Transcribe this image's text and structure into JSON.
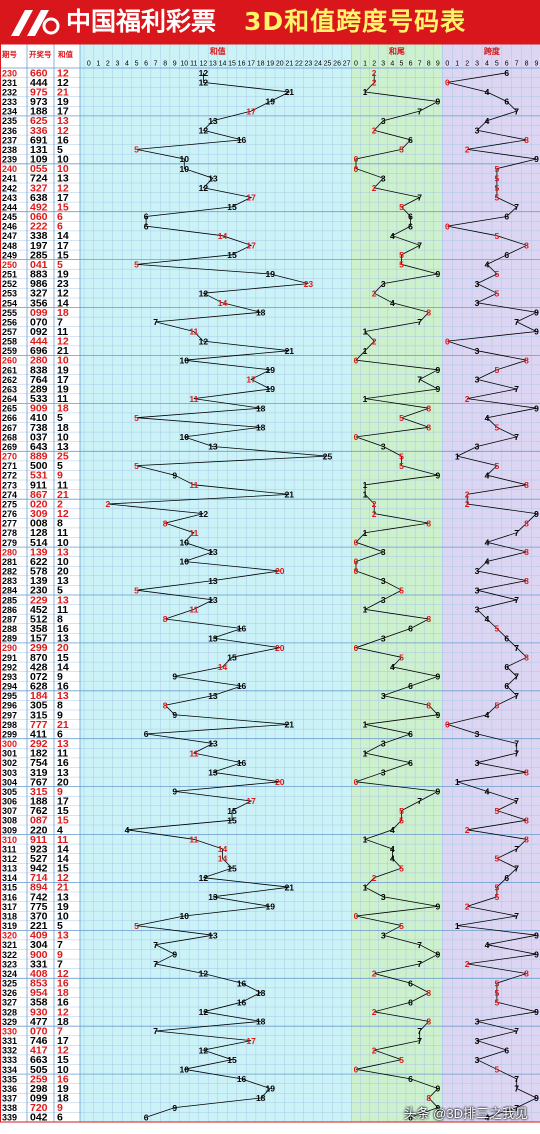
{
  "header": {
    "brand": "中国福利彩票",
    "title": "3D和值跨度号码表"
  },
  "watermark": "头条 @3D排三之我见",
  "colors": {
    "header_red": "#d8161b",
    "title_yellow": "#fff36a",
    "sum_zone": "#cbf3f7",
    "tail_zone": "#cdf0cd",
    "span_zone": "#dcd6f2",
    "red_digit": "#e01818",
    "blue_digit": "#1a3fd8",
    "line": "#000000"
  },
  "chart_data": {
    "type": "line",
    "columns": {
      "issue": "期号",
      "number": "开奖号",
      "sum": "和值"
    },
    "sections": {
      "sum": "和值",
      "tail": "和尾",
      "span": "跨度"
    },
    "sum_ticks": [
      "0",
      "1",
      "2",
      "3",
      "4",
      "5",
      "6",
      "7",
      "8",
      "9",
      "10",
      "11",
      "12",
      "13",
      "14",
      "15",
      "16",
      "17",
      "18",
      "19",
      "20",
      "21",
      "22",
      "23",
      "24",
      "25",
      "26",
      "27"
    ],
    "tail_ticks": [
      "0",
      "1",
      "2",
      "3",
      "4",
      "5",
      "6",
      "7",
      "8",
      "9"
    ],
    "span_ticks": [
      "0",
      "1",
      "2",
      "3",
      "4",
      "5",
      "6",
      "7",
      "8",
      "9"
    ],
    "issues": [
      "230",
      "231",
      "232",
      "233",
      "234",
      "235",
      "236",
      "237",
      "238",
      "239",
      "240",
      "241",
      "242",
      "243",
      "244",
      "245",
      "246",
      "247",
      "248",
      "249",
      "250",
      "251",
      "252",
      "253",
      "254",
      "255",
      "256",
      "257",
      "258",
      "259",
      "260",
      "261",
      "262",
      "263",
      "264",
      "265",
      "266",
      "267",
      "268",
      "269",
      "270",
      "271",
      "272",
      "273",
      "274",
      "275",
      "276",
      "277",
      "278",
      "279",
      "280",
      "281",
      "282",
      "283",
      "284",
      "285",
      "286",
      "287",
      "288",
      "289",
      "290",
      "291",
      "292",
      "293",
      "294",
      "295",
      "296",
      "297",
      "298",
      "299",
      "300",
      "301",
      "302",
      "303",
      "304",
      "305",
      "306",
      "307",
      "308",
      "309",
      "310",
      "311",
      "312",
      "313",
      "314",
      "315",
      "316",
      "317",
      "318",
      "319",
      "320",
      "321",
      "322",
      "323",
      "324",
      "325",
      "326",
      "327",
      "328",
      "329",
      "330",
      "331",
      "332",
      "333",
      "334",
      "335",
      "336",
      "337",
      "338",
      "339"
    ],
    "numbers": [
      "660",
      "444",
      "975",
      "973",
      "188",
      "625",
      "336",
      "691",
      "131",
      "109",
      "055",
      "724",
      "327",
      "638",
      "492",
      "060",
      "222",
      "338",
      "197",
      "285",
      "041",
      "883",
      "986",
      "327",
      "356",
      "099",
      "070",
      "092",
      "444",
      "696",
      "280",
      "838",
      "764",
      "289",
      "533",
      "909",
      "410",
      "738",
      "037",
      "643",
      "889",
      "500",
      "531",
      "911",
      "867",
      "020",
      "309",
      "008",
      "128",
      "514",
      "139",
      "622",
      "578",
      "139",
      "230",
      "229",
      "452",
      "512",
      "358",
      "157",
      "299",
      "870",
      "428",
      "072",
      "628",
      "184",
      "305",
      "315",
      "777",
      "411",
      "292",
      "182",
      "754",
      "319",
      "767",
      "315",
      "188",
      "762",
      "087",
      "220",
      "911",
      "923",
      "527",
      "942",
      "714",
      "894",
      "742",
      "775",
      "370",
      "221",
      "409",
      "304",
      "900",
      "331",
      "408",
      "853",
      "954",
      "358",
      "930",
      "477",
      "070",
      "746",
      "417",
      "663",
      "505",
      "259",
      "298",
      "099",
      "720",
      "042"
    ],
    "sums": [
      12,
      12,
      21,
      19,
      17,
      13,
      12,
      16,
      5,
      10,
      10,
      13,
      12,
      17,
      15,
      6,
      6,
      14,
      17,
      15,
      5,
      19,
      23,
      12,
      14,
      18,
      7,
      11,
      12,
      21,
      10,
      19,
      17,
      19,
      11,
      18,
      5,
      18,
      10,
      13,
      25,
      5,
      9,
      11,
      21,
      2,
      12,
      8,
      11,
      10,
      13,
      10,
      20,
      13,
      5,
      13,
      11,
      8,
      16,
      13,
      20,
      15,
      14,
      9,
      16,
      13,
      8,
      9,
      21,
      6,
      13,
      11,
      16,
      13,
      20,
      9,
      17,
      15,
      15,
      4,
      11,
      14,
      14,
      15,
      12,
      21,
      13,
      19,
      10,
      5,
      13,
      7,
      9,
      7,
      12,
      16,
      18,
      16,
      12,
      18,
      7,
      17,
      12,
      15,
      10,
      16,
      19,
      18,
      9,
      6
    ],
    "ylabel": "",
    "xlabel": ""
  }
}
